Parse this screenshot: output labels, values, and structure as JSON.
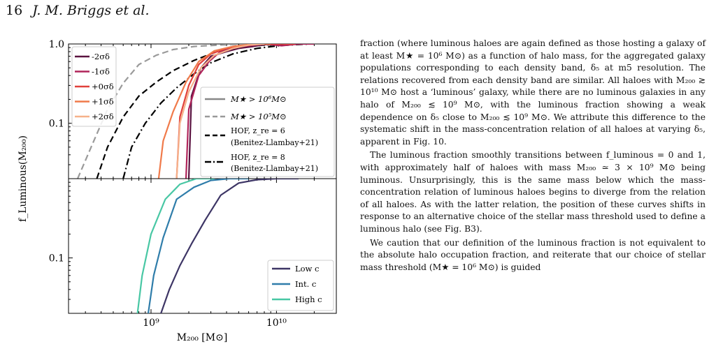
{
  "header": {
    "page_number": "16",
    "authors": "J. M. Briggs et al."
  },
  "paragraphs": [
    "fraction (where luminous haloes are again defined as those hosting a galaxy of at least M★ = 10⁶ M⊙) as a function of halo mass, for the aggregated galaxy populations corresponding to each density band, δ₅ at m5 resolution. The relations recovered from each density band are similar. All haloes with M₂₀₀ ≳ 10¹⁰ M⊙ host a ‘luminous’ galaxy, while there are no luminous galaxies in any halo of M₂₀₀ ≲ 10⁹ M⊙, with the luminous fraction showing a weak dependence on δ₅ close to M₂₀₀ ≲ 10⁹ M⊙. We attribute this difference to the systematic shift in the mass-concentration relation of all haloes at varying δ₅, apparent in Fig. 10.",
    "The luminous fraction smoothly transitions between f_luminous = 0 and 1, with approximately half of haloes with mass M₂₀₀ ≃ 3 × 10⁹ M⊙ being luminous. Unsurprisingly, this is the same mass below which the mass-concentration relation of luminous haloes begins to diverge from the relation of all haloes. As with the latter relation, the position of these curves shifts in response to an alternative choice of the stellar mass threshold used to define a luminous halo (see Fig. B3).",
    "We caution that our definition of the luminous fraction is not equivalent to the absolute halo occupation fraction, and reiterate that our choice of stellar mass threshold (M★ = 10⁶ M⊙) is guided"
  ],
  "chart_data": [
    {
      "type": "line",
      "panel": "top",
      "ylabel": "f_Luminous(M₂₀₀)",
      "yscale": "log",
      "xscale": "log",
      "xlim": [
        220000000.0,
        30000000000.0
      ],
      "ylim": [
        0.02,
        1.0
      ],
      "ytick_labels": [
        "1.0",
        "0.1"
      ],
      "series": [
        {
          "name": "-2σδ",
          "color": "#5a1240",
          "x": [
            2000000000.0,
            2100000000.0,
            2500000000.0,
            3000000000.0,
            4000000000.0,
            5000000000.0,
            6500000000.0,
            8000000000.0,
            10000000000.0,
            13000000000.0,
            16000000000.0
          ],
          "y": [
            0.02,
            0.22,
            0.5,
            0.7,
            0.8,
            0.88,
            0.93,
            0.98,
            1.0,
            1.0,
            1.0
          ]
        },
        {
          "name": "-1σδ",
          "color": "#b0245a",
          "x": [
            1900000000.0,
            2000000000.0,
            2400000000.0,
            2900000000.0,
            3500000000.0,
            4500000000.0,
            6000000000.0,
            8000000000.0,
            11000000000.0,
            15000000000.0,
            20000000000.0
          ],
          "y": [
            0.02,
            0.15,
            0.4,
            0.6,
            0.78,
            0.9,
            0.95,
            1.0,
            0.95,
            1.0,
            1.0
          ]
        },
        {
          "name": "+0σδ",
          "color": "#e1413b",
          "x": [
            1600000000.0,
            1700000000.0,
            2000000000.0,
            2400000000.0,
            3000000000.0,
            4000000000.0,
            5500000000.0,
            7500000000.0,
            10000000000.0,
            14000000000.0
          ],
          "y": [
            0.02,
            0.12,
            0.3,
            0.55,
            0.75,
            0.88,
            0.95,
            1.0,
            1.0,
            1.0
          ]
        },
        {
          "name": "+1σδ",
          "color": "#f07a4a",
          "x": [
            1150000000.0,
            1250000000.0,
            1500000000.0,
            1900000000.0,
            2400000000.0,
            3200000000.0,
            4500000000.0,
            6500000000.0,
            9000000000.0
          ],
          "y": [
            0.02,
            0.06,
            0.14,
            0.33,
            0.6,
            0.82,
            0.93,
            1.0,
            1.0
          ]
        },
        {
          "name": "+2σδ",
          "color": "#f6b18a",
          "x": [
            1600000000.0,
            1700000000.0,
            2000000000.0,
            2500000000.0,
            3200000000.0,
            4500000000.0,
            6000000000.0,
            8000000000.0
          ],
          "y": [
            0.02,
            0.1,
            0.25,
            0.5,
            0.72,
            0.88,
            0.97,
            1.0
          ]
        }
      ],
      "reference_lines": [
        {
          "name": "M★ > 10⁶M⊙",
          "style": "solid",
          "color": "#888888",
          "x": [],
          "y": []
        },
        {
          "name": "M★ > 10⁵M⊙",
          "style": "dashed",
          "color": "#9a9a9a",
          "x": [
            260000000.0,
            350000000.0,
            450000000.0,
            600000000.0,
            800000000.0,
            1100000000.0,
            1500000000.0,
            2200000000.0,
            3500000000.0,
            6000000000.0,
            10000000000.0
          ],
          "y": [
            0.02,
            0.06,
            0.15,
            0.32,
            0.55,
            0.72,
            0.85,
            0.93,
            0.97,
            1.0,
            1.0
          ]
        },
        {
          "name": "HOF, z_re = 6 (Benitez-Llambay+21)",
          "style": "dashed",
          "color": "#000000",
          "x": [
            370000000.0,
            450000000.0,
            600000000.0,
            800000000.0,
            1100000000.0,
            1500000000.0,
            2200000000.0,
            3200000000.0,
            5000000000.0,
            8000000000.0,
            13000000000.0
          ],
          "y": [
            0.02,
            0.05,
            0.12,
            0.22,
            0.33,
            0.46,
            0.62,
            0.78,
            0.9,
            0.97,
            1.0
          ]
        },
        {
          "name": "HOF, z_re = 8 (Benitez-Llambay+21)",
          "style": "dashdot",
          "color": "#000000",
          "x": [
            600000000.0,
            700000000.0,
            900000000.0,
            1200000000.0,
            1600000000.0,
            2200000000.0,
            3000000000.0,
            4500000000.0,
            7000000000.0,
            11000000000.0,
            18000000000.0
          ],
          "y": [
            0.02,
            0.05,
            0.1,
            0.18,
            0.28,
            0.42,
            0.58,
            0.75,
            0.88,
            0.96,
            1.0
          ]
        }
      ],
      "legend_left": {
        "placement": "top-left"
      },
      "legend_right": {
        "placement": "right"
      }
    },
    {
      "type": "line",
      "panel": "bottom",
      "xlabel": "M₂₀₀ [M⊙]",
      "yscale": "log",
      "xscale": "log",
      "xlim": [
        220000000.0,
        30000000000.0
      ],
      "ylim": [
        0.02,
        1.0
      ],
      "ytick_labels": [
        "1.0",
        "0.1"
      ],
      "xtick_labels": [
        "10⁹",
        "10¹⁰"
      ],
      "series": [
        {
          "name": "Low c",
          "color": "#3d3565",
          "x": [
            1200000000.0,
            1400000000.0,
            1700000000.0,
            2100000000.0,
            2700000000.0,
            3600000000.0,
            5000000000.0,
            7000000000.0,
            10000000000.0,
            15000000000.0
          ],
          "y": [
            0.02,
            0.04,
            0.08,
            0.15,
            0.3,
            0.62,
            0.88,
            0.97,
            1.0,
            1.0
          ]
        },
        {
          "name": "Int. c",
          "color": "#2f7daa",
          "x": [
            950000000.0,
            1050000000.0,
            1250000000.0,
            1600000000.0,
            2200000000.0,
            3000000000.0,
            4200000000.0,
            6000000000.0
          ],
          "y": [
            0.02,
            0.06,
            0.18,
            0.55,
            0.78,
            0.95,
            1.0,
            1.0
          ]
        },
        {
          "name": "High c",
          "color": "#48c7a4",
          "x": [
            780000000.0,
            850000000.0,
            1000000000.0,
            1300000000.0,
            1700000000.0,
            2300000000.0,
            3200000000.0
          ],
          "y": [
            0.02,
            0.06,
            0.2,
            0.55,
            0.85,
            1.0,
            1.0
          ]
        }
      ],
      "legend": {
        "placement": "bottom-right"
      }
    }
  ]
}
